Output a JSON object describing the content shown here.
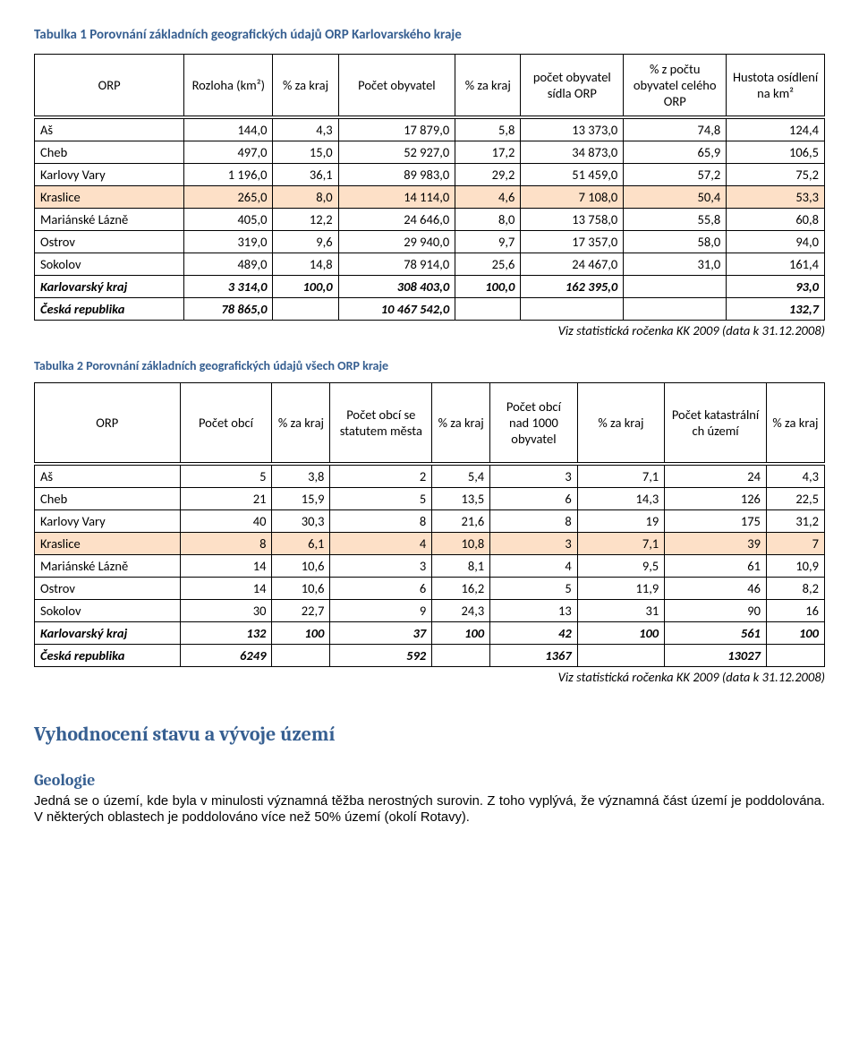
{
  "title1": "Tabulka 1  Porovnání základních geografických údajů ORP Karlovarského kraje",
  "title2": "Tabulka 2 Porovnání základních geografických údajů všech ORP kraje",
  "source": "Viz statistická ročenka KK 2009 (data k 31.12.2008)",
  "t1": {
    "headers": [
      "ORP",
      "Rozloha (km²)",
      "% za kraj",
      "Počet obyvatel",
      "% za kraj",
      "počet obyvatel sídla ORP",
      "% z počtu obyvatel celého ORP",
      "Hustota osídlení na km²"
    ],
    "rows": [
      {
        "n": "Aš",
        "v": [
          "144,0",
          "4,3",
          "17 879,0",
          "5,8",
          "13 373,0",
          "74,8",
          "124,4"
        ]
      },
      {
        "n": "Cheb",
        "v": [
          "497,0",
          "15,0",
          "52 927,0",
          "17,2",
          "34 873,0",
          "65,9",
          "106,5"
        ]
      },
      {
        "n": "Karlovy Vary",
        "v": [
          "1 196,0",
          "36,1",
          "89 983,0",
          "29,2",
          "51 459,0",
          "57,2",
          "75,2"
        ]
      },
      {
        "n": "Kraslice",
        "v": [
          "265,0",
          "8,0",
          "14 114,0",
          "4,6",
          "7 108,0",
          "50,4",
          "53,3"
        ],
        "hl": true
      },
      {
        "n": "Mariánské Lázně",
        "v": [
          "405,0",
          "12,2",
          "24 646,0",
          "8,0",
          "13 758,0",
          "55,8",
          "60,8"
        ]
      },
      {
        "n": "Ostrov",
        "v": [
          "319,0",
          "9,6",
          "29 940,0",
          "9,7",
          "17 357,0",
          "58,0",
          "94,0"
        ]
      },
      {
        "n": "Sokolov",
        "v": [
          "489,0",
          "14,8",
          "78 914,0",
          "25,6",
          "24 467,0",
          "31,0",
          "161,4"
        ]
      },
      {
        "n": "Karlovarský kraj",
        "v": [
          "3 314,0",
          "100,0",
          "308 403,0",
          "100,0",
          "162 395,0",
          "",
          "93,0"
        ],
        "b": true
      },
      {
        "n": "Česká republika",
        "v": [
          "78 865,0",
          "",
          "10 467 542,0",
          "",
          "",
          "",
          "132,7"
        ],
        "b": true
      }
    ]
  },
  "t2": {
    "headers": [
      "ORP",
      "Počet obcí",
      "% za kraj",
      "Počet obcí se statutem města",
      "% za kraj",
      "Počet obcí nad 1000 obyvatel",
      "% za kraj",
      "Počet katastrální ch území",
      "% za kraj"
    ],
    "rows": [
      {
        "n": "Aš",
        "v": [
          "5",
          "3,8",
          "2",
          "5,4",
          "3",
          "7,1",
          "24",
          "4,3"
        ]
      },
      {
        "n": "Cheb",
        "v": [
          "21",
          "15,9",
          "5",
          "13,5",
          "6",
          "14,3",
          "126",
          "22,5"
        ]
      },
      {
        "n": "Karlovy Vary",
        "v": [
          "40",
          "30,3",
          "8",
          "21,6",
          "8",
          "19",
          "175",
          "31,2"
        ]
      },
      {
        "n": "Kraslice",
        "v": [
          "8",
          "6,1",
          "4",
          "10,8",
          "3",
          "7,1",
          "39",
          "7"
        ],
        "hl": true
      },
      {
        "n": "Mariánské Lázně",
        "v": [
          "14",
          "10,6",
          "3",
          "8,1",
          "4",
          "9,5",
          "61",
          "10,9"
        ]
      },
      {
        "n": "Ostrov",
        "v": [
          "14",
          "10,6",
          "6",
          "16,2",
          "5",
          "11,9",
          "46",
          "8,2"
        ]
      },
      {
        "n": "Sokolov",
        "v": [
          "30",
          "22,7",
          "9",
          "24,3",
          "13",
          "31",
          "90",
          "16"
        ]
      },
      {
        "n": "Karlovarský kraj",
        "v": [
          "132",
          "100",
          "37",
          "100",
          "42",
          "100",
          "561",
          "100"
        ],
        "b": true
      },
      {
        "n": "Česká republika",
        "v": [
          "6249",
          "",
          "592",
          "",
          "1367",
          "",
          "13027",
          ""
        ],
        "b": true
      }
    ]
  },
  "heading2": "Vyhodnocení stavu a vývoje území",
  "heading3": "Geologie",
  "bodytext": "Jedná se o území, kde byla v minulosti významná těžba nerostných surovin. Z toho vyplývá, že významná část území je poddolována. V některých oblastech je poddolováno více než 50% území (okolí Rotavy)."
}
